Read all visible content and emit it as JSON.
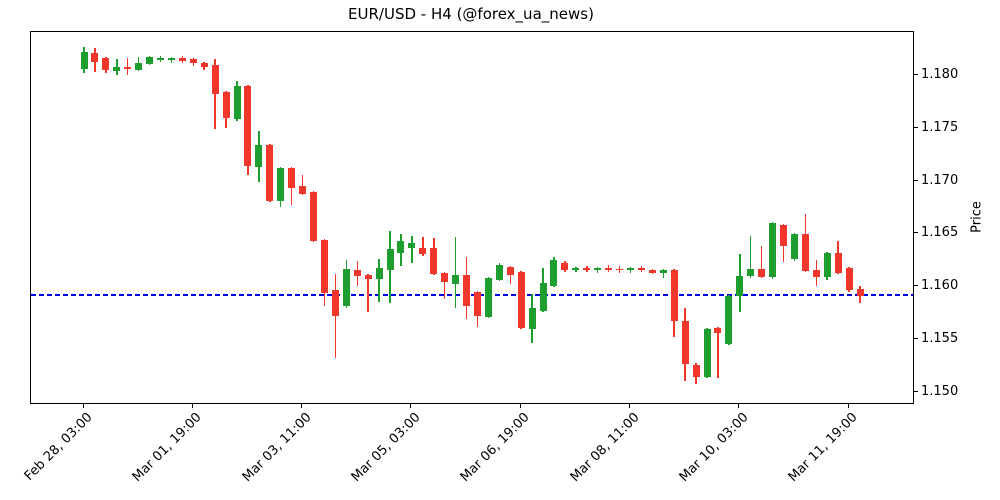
{
  "title": "EUR/USD - H4 (@forex_ua_news)",
  "chart_data": {
    "type": "candlestick",
    "symbol": "EUR/USD",
    "timeframe": "H4",
    "source_handle": "@forex_ua_news",
    "ylabel": "Price",
    "ylim": [
      1.149,
      1.1841
    ],
    "yticks": [
      1.15,
      1.155,
      1.16,
      1.165,
      1.17,
      1.175,
      1.18
    ],
    "xticks": [
      {
        "i": 0,
        "label": "Feb 28, 03:00"
      },
      {
        "i": 10,
        "label": "Mar 01, 19:00"
      },
      {
        "i": 20,
        "label": "Mar 03, 11:00"
      },
      {
        "i": 30,
        "label": "Mar 05, 03:00"
      },
      {
        "i": 40,
        "label": "Mar 06, 19:00"
      },
      {
        "i": 50,
        "label": "Mar 08, 11:00"
      },
      {
        "i": 60,
        "label": "Mar 10, 03:00"
      },
      {
        "i": 70,
        "label": "Mar 11, 19:00"
      }
    ],
    "hline": {
      "price": 1.1592,
      "color": "#0000ee",
      "style": "dashed"
    },
    "up_color": "#1d9e2e",
    "down_color": "#f1362c",
    "grid": false,
    "legend": null,
    "candles_format": [
      "open",
      "high",
      "low",
      "close"
    ],
    "candles": [
      [
        1.1806,
        1.1827,
        1.1802,
        1.1822
      ],
      [
        1.1821,
        1.1826,
        1.1803,
        1.1813
      ],
      [
        1.1816,
        1.1817,
        1.1802,
        1.1805
      ],
      [
        1.1804,
        1.1815,
        1.18,
        1.1808
      ],
      [
        1.1808,
        1.1816,
        1.18,
        1.1806
      ],
      [
        1.1805,
        1.1817,
        1.1804,
        1.1812
      ],
      [
        1.1811,
        1.1818,
        1.181,
        1.1817
      ],
      [
        1.1815,
        1.1818,
        1.1813,
        1.1816
      ],
      [
        1.1815,
        1.1817,
        1.1812,
        1.1816
      ],
      [
        1.1816,
        1.1818,
        1.1812,
        1.1814
      ],
      [
        1.1815,
        1.1816,
        1.1809,
        1.1812
      ],
      [
        1.1812,
        1.1813,
        1.1805,
        1.1808
      ],
      [
        1.181,
        1.1815,
        1.1749,
        1.1782
      ],
      [
        1.1784,
        1.1785,
        1.175,
        1.176
      ],
      [
        1.1759,
        1.1795,
        1.1757,
        1.179
      ],
      [
        1.179,
        1.1791,
        1.1706,
        1.1714
      ],
      [
        1.1713,
        1.1747,
        1.1699,
        1.1734
      ],
      [
        1.1734,
        1.1735,
        1.168,
        1.1681
      ],
      [
        1.1681,
        1.1713,
        1.1675,
        1.1712
      ],
      [
        1.1712,
        1.1713,
        1.1677,
        1.1693
      ],
      [
        1.1695,
        1.1706,
        1.1687,
        1.1688
      ],
      [
        1.169,
        1.1691,
        1.1642,
        1.1643
      ],
      [
        1.1644,
        1.1645,
        1.1582,
        1.1594
      ],
      [
        1.1597,
        1.1612,
        1.1533,
        1.1572
      ],
      [
        1.1582,
        1.1625,
        1.158,
        1.1617
      ],
      [
        1.1616,
        1.1624,
        1.1601,
        1.161
      ],
      [
        1.1611,
        1.1612,
        1.1576,
        1.1607
      ],
      [
        1.1607,
        1.1626,
        1.1586,
        1.1618
      ],
      [
        1.1616,
        1.1653,
        1.1585,
        1.1636
      ],
      [
        1.1632,
        1.165,
        1.162,
        1.1643
      ],
      [
        1.1637,
        1.1648,
        1.1622,
        1.1641
      ],
      [
        1.1637,
        1.1647,
        1.1629,
        1.1631
      ],
      [
        1.1637,
        1.1646,
        1.1611,
        1.1612
      ],
      [
        1.1613,
        1.1614,
        1.1588,
        1.1604
      ],
      [
        1.1603,
        1.1647,
        1.158,
        1.1611
      ],
      [
        1.1611,
        1.1628,
        1.1569,
        1.1582
      ],
      [
        1.1595,
        1.1596,
        1.1562,
        1.1572
      ],
      [
        1.1571,
        1.1609,
        1.157,
        1.1608
      ],
      [
        1.1606,
        1.1622,
        1.1605,
        1.1621
      ],
      [
        1.1619,
        1.162,
        1.1603,
        1.1611
      ],
      [
        1.1614,
        1.1615,
        1.156,
        1.1561
      ],
      [
        1.156,
        1.1593,
        1.1547,
        1.158
      ],
      [
        1.1577,
        1.1618,
        1.1576,
        1.1604
      ],
      [
        1.1601,
        1.1628,
        1.16,
        1.1625
      ],
      [
        1.1622,
        1.1624,
        1.1614,
        1.1616
      ],
      [
        1.1616,
        1.1619,
        1.1614,
        1.1618
      ],
      [
        1.1618,
        1.162,
        1.1614,
        1.1616
      ],
      [
        1.1616,
        1.1619,
        1.1613,
        1.1618
      ],
      [
        1.1618,
        1.1621,
        1.1614,
        1.1616
      ],
      [
        1.1617,
        1.162,
        1.1613,
        1.1616
      ],
      [
        1.1616,
        1.1619,
        1.1613,
        1.1618
      ],
      [
        1.1618,
        1.162,
        1.1614,
        1.1616
      ],
      [
        1.1616,
        1.1617,
        1.1612,
        1.1613
      ],
      [
        1.1613,
        1.1617,
        1.1608,
        1.1616
      ],
      [
        1.1616,
        1.1617,
        1.1552,
        1.1568
      ],
      [
        1.1568,
        1.158,
        1.1511,
        1.1527
      ],
      [
        1.1526,
        1.1528,
        1.1508,
        1.1515
      ],
      [
        1.1515,
        1.1561,
        1.1514,
        1.156
      ],
      [
        1.1561,
        1.1562,
        1.1514,
        1.1556
      ],
      [
        1.1546,
        1.1592,
        1.1545,
        1.1591
      ],
      [
        1.1591,
        1.1631,
        1.1576,
        1.161
      ],
      [
        1.161,
        1.1648,
        1.1608,
        1.1617
      ],
      [
        1.1617,
        1.1639,
        1.1608,
        1.1609
      ],
      [
        1.1609,
        1.1661,
        1.1607,
        1.166
      ],
      [
        1.1658,
        1.1659,
        1.1623,
        1.1639
      ],
      [
        1.1626,
        1.1651,
        1.1624,
        1.165
      ],
      [
        1.165,
        1.1669,
        1.1614,
        1.1615
      ],
      [
        1.1616,
        1.1625,
        1.1601,
        1.1609
      ],
      [
        1.1609,
        1.1633,
        1.1606,
        1.1632
      ],
      [
        1.1632,
        1.1643,
        1.1612,
        1.1613
      ],
      [
        1.1618,
        1.1619,
        1.1595,
        1.1597
      ],
      [
        1.1598,
        1.1601,
        1.1585,
        1.1591
      ]
    ]
  }
}
